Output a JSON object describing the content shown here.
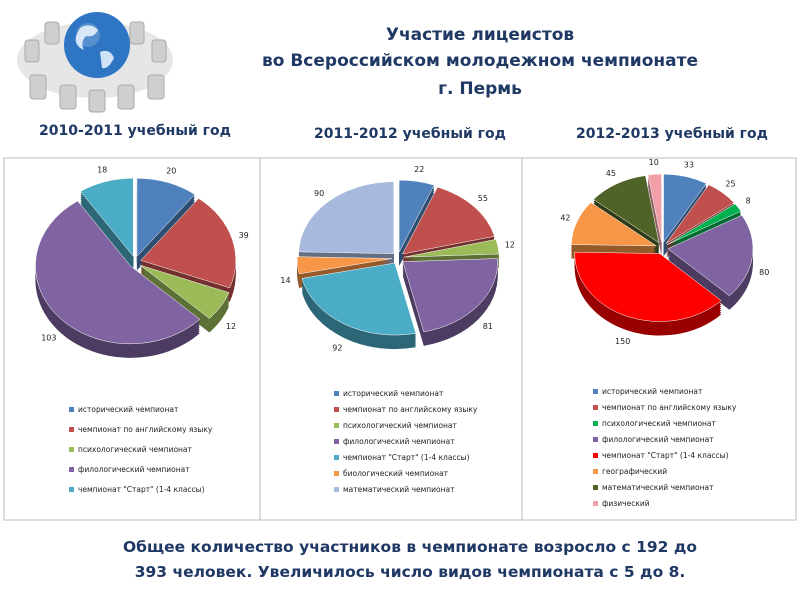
{
  "slide": {
    "title": [
      "Участие   лицеистов",
      "во Всероссийском молодежном чемпионате",
      "г. Пермь"
    ],
    "footer": [
      "Общее количество участников в чемпионате возросло с 192 до",
      "393 человек. Увеличилось число видов чемпионата с 5 до 8."
    ]
  },
  "chart_data": [
    {
      "type": "pie",
      "title": "2010-2011 учебный год",
      "categories": [
        "исторический чемпионат",
        "чемпионат по английскому языку",
        "психологический чемпионат",
        "филологический чемпионат",
        "чемпионат \"Старт\" (1-4 классы)"
      ],
      "values": [
        20,
        39,
        12,
        103,
        18
      ],
      "colors": [
        "#4f81bd",
        "#c0504d",
        "#9bbb59",
        "#8064a2",
        "#4bacc6"
      ]
    },
    {
      "type": "pie",
      "title": "2011-2012 учебный год",
      "categories": [
        "исторический чемпионат",
        "чемпионат по английскому языку",
        "психологический чемпионат",
        "филологический чемпионат",
        "чемпионат \"Старт\" (1-4 классы)",
        "биологический чемпионат",
        "математический чемпионат"
      ],
      "values": [
        22,
        55,
        12,
        81,
        92,
        14,
        90
      ],
      "colors": [
        "#4f81bd",
        "#c0504d",
        "#9bbb59",
        "#8064a2",
        "#4bacc6",
        "#f79646",
        "#a7b9dc"
      ]
    },
    {
      "type": "pie",
      "title": "2012-2013 учебный год",
      "categories": [
        "исторический чемпионат",
        "чемпионат по английскому языку",
        "психологический чемпионат",
        "филологический чемпионат",
        "чемпионат \"Старт\" (1-4 классы)",
        "географический",
        "математический чемпионат",
        "физический"
      ],
      "values": [
        33,
        25,
        8,
        80,
        150,
        42,
        45,
        10
      ],
      "colors": [
        "#4f81bd",
        "#c0504d",
        "#00b050",
        "#8064a2",
        "#ff0000",
        "#f79646",
        "#4f6228",
        "#f2a0a8"
      ]
    }
  ]
}
